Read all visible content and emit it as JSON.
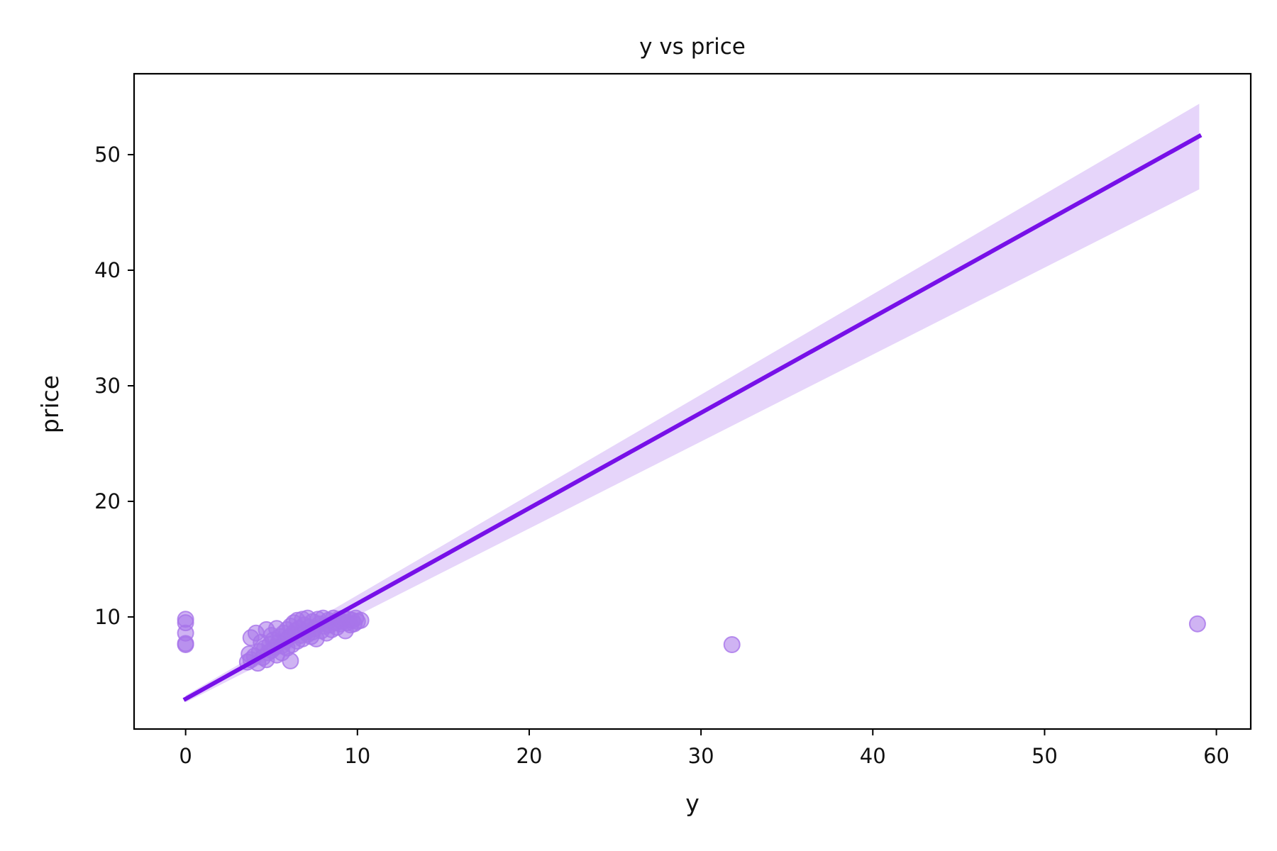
{
  "chart_data": {
    "type": "scatter",
    "title": "y vs price",
    "xlabel": "y",
    "ylabel": "price",
    "xlim": [
      -3,
      62
    ],
    "ylim": [
      0.3,
      57
    ],
    "xticks": [
      0,
      10,
      20,
      30,
      40,
      50,
      60
    ],
    "yticks": [
      10,
      20,
      30,
      40,
      50
    ],
    "grid": false,
    "colors": {
      "points": "#a874ea",
      "line": "#7710e8",
      "band": "#e6d5fa",
      "axes": "#000000"
    },
    "regression": {
      "x": [
        0,
        59
      ],
      "y": [
        2.9,
        51.6
      ],
      "ci_upper": [
        3.2,
        54.4
      ],
      "ci_lower": [
        2.6,
        47.0
      ]
    },
    "points": [
      {
        "x": 0,
        "y": 9.8
      },
      {
        "x": 0,
        "y": 9.5
      },
      {
        "x": 0,
        "y": 8.6
      },
      {
        "x": 0,
        "y": 7.7
      },
      {
        "x": 0,
        "y": 7.6
      },
      {
        "x": 31.8,
        "y": 7.6
      },
      {
        "x": 58.9,
        "y": 9.4
      },
      {
        "x": 3.8,
        "y": 8.2
      },
      {
        "x": 4.1,
        "y": 8.6
      },
      {
        "x": 4.7,
        "y": 8.9
      },
      {
        "x": 6.1,
        "y": 6.2
      },
      {
        "x": 9.3,
        "y": 8.8
      },
      {
        "x": 10.2,
        "y": 9.7
      },
      {
        "x": 9.9,
        "y": 9.9
      },
      {
        "x": 3.6,
        "y": 6.1
      },
      {
        "x": 3.8,
        "y": 6.3
      },
      {
        "x": 4.0,
        "y": 6.6
      },
      {
        "x": 4.2,
        "y": 6.0
      },
      {
        "x": 4.3,
        "y": 7.0
      },
      {
        "x": 4.5,
        "y": 6.5
      },
      {
        "x": 4.6,
        "y": 7.3
      },
      {
        "x": 4.8,
        "y": 6.9
      },
      {
        "x": 4.9,
        "y": 7.6
      },
      {
        "x": 5.0,
        "y": 7.1
      },
      {
        "x": 5.1,
        "y": 8.0
      },
      {
        "x": 5.2,
        "y": 7.4
      },
      {
        "x": 5.3,
        "y": 6.7
      },
      {
        "x": 5.4,
        "y": 7.8
      },
      {
        "x": 5.5,
        "y": 8.3
      },
      {
        "x": 5.6,
        "y": 7.5
      },
      {
        "x": 5.7,
        "y": 8.6
      },
      {
        "x": 5.8,
        "y": 7.9
      },
      {
        "x": 5.9,
        "y": 8.9
      },
      {
        "x": 6.0,
        "y": 8.2
      },
      {
        "x": 6.1,
        "y": 9.2
      },
      {
        "x": 6.2,
        "y": 8.5
      },
      {
        "x": 6.3,
        "y": 9.5
      },
      {
        "x": 6.4,
        "y": 8.8
      },
      {
        "x": 6.5,
        "y": 9.7
      },
      {
        "x": 6.6,
        "y": 9.0
      },
      {
        "x": 6.7,
        "y": 8.4
      },
      {
        "x": 6.8,
        "y": 9.8
      },
      {
        "x": 6.9,
        "y": 9.3
      },
      {
        "x": 7.0,
        "y": 8.7
      },
      {
        "x": 7.1,
        "y": 9.9
      },
      {
        "x": 7.2,
        "y": 9.1
      },
      {
        "x": 7.3,
        "y": 8.3
      },
      {
        "x": 7.4,
        "y": 9.6
      },
      {
        "x": 7.5,
        "y": 9.0
      },
      {
        "x": 7.6,
        "y": 8.1
      },
      {
        "x": 7.7,
        "y": 9.8
      },
      {
        "x": 7.8,
        "y": 9.4
      },
      {
        "x": 7.9,
        "y": 8.8
      },
      {
        "x": 8.0,
        "y": 9.9
      },
      {
        "x": 8.1,
        "y": 9.2
      },
      {
        "x": 8.2,
        "y": 8.6
      },
      {
        "x": 8.3,
        "y": 9.7
      },
      {
        "x": 8.4,
        "y": 9.3
      },
      {
        "x": 8.5,
        "y": 8.9
      },
      {
        "x": 8.6,
        "y": 9.9
      },
      {
        "x": 8.7,
        "y": 9.5
      },
      {
        "x": 8.8,
        "y": 9.1
      },
      {
        "x": 8.9,
        "y": 9.8
      },
      {
        "x": 9.0,
        "y": 9.4
      },
      {
        "x": 9.1,
        "y": 9.6
      },
      {
        "x": 9.2,
        "y": 9.9
      },
      {
        "x": 9.4,
        "y": 9.5
      },
      {
        "x": 9.5,
        "y": 9.8
      },
      {
        "x": 9.6,
        "y": 9.3
      },
      {
        "x": 9.7,
        "y": 9.7
      },
      {
        "x": 9.8,
        "y": 9.4
      },
      {
        "x": 10.0,
        "y": 9.6
      },
      {
        "x": 3.7,
        "y": 6.8
      },
      {
        "x": 4.4,
        "y": 7.8
      },
      {
        "x": 4.7,
        "y": 6.3
      },
      {
        "x": 5.0,
        "y": 8.4
      },
      {
        "x": 5.3,
        "y": 9.0
      },
      {
        "x": 5.6,
        "y": 6.9
      },
      {
        "x": 5.9,
        "y": 7.3
      },
      {
        "x": 6.2,
        "y": 7.6
      },
      {
        "x": 6.5,
        "y": 7.9
      },
      {
        "x": 6.8,
        "y": 8.1
      },
      {
        "x": 7.1,
        "y": 8.5
      },
      {
        "x": 7.4,
        "y": 8.7
      }
    ]
  }
}
